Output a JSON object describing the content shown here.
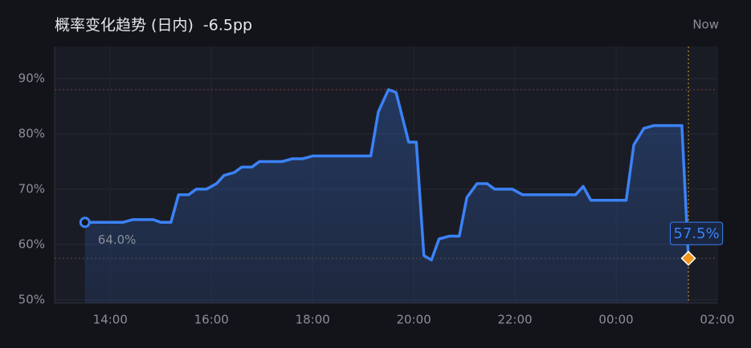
{
  "chart_data": {
    "type": "line",
    "title": "概率变化趋势 (日内)",
    "change": "-6.5pp",
    "now_label": "Now",
    "x": [
      13.5,
      14.25,
      14.45,
      14.85,
      15.0,
      15.2,
      15.35,
      15.55,
      15.7,
      15.9,
      16.1,
      16.25,
      16.45,
      16.6,
      16.8,
      16.95,
      17.4,
      17.6,
      17.8,
      18.0,
      19.15,
      19.3,
      19.5,
      19.65,
      19.9,
      20.05,
      20.2,
      20.35,
      20.5,
      20.7,
      20.9,
      21.05,
      21.25,
      21.45,
      21.6,
      21.95,
      22.15,
      23.2,
      23.35,
      23.5,
      24.2,
      24.35,
      24.55,
      24.75,
      25.3,
      25.43
    ],
    "series": [
      {
        "color": "#3b82f6",
        "values": [
          64.0,
          64.0,
          64.5,
          64.5,
          64.0,
          64.0,
          69.0,
          69.0,
          70.0,
          70.0,
          71.0,
          72.5,
          73.0,
          74.0,
          74.0,
          75.0,
          75.0,
          75.5,
          75.5,
          76.0,
          76.0,
          84.0,
          88.0,
          87.5,
          78.5,
          78.5,
          58.0,
          57.2,
          61.0,
          61.5,
          61.5,
          68.5,
          71.0,
          71.0,
          70.0,
          70.0,
          69.0,
          69.0,
          70.5,
          68.0,
          68.0,
          78.0,
          81.0,
          81.5,
          81.5,
          57.5
        ],
        "value_labels": [
          "64.0%",
          null,
          null,
          null,
          null,
          null,
          null,
          null,
          null,
          null,
          null,
          null,
          null,
          null,
          null,
          null,
          null,
          null,
          null,
          null,
          null,
          null,
          null,
          null,
          null,
          null,
          null,
          null,
          null,
          null,
          null,
          null,
          null,
          null,
          null,
          null,
          null,
          null,
          null,
          null,
          null,
          null,
          null,
          null,
          null,
          "57.5%"
        ]
      }
    ],
    "xlim": [
      12.9,
      26.0
    ],
    "xticks": [
      {
        "value": 14,
        "label": "14:00"
      },
      {
        "value": 16,
        "label": "16:00"
      },
      {
        "value": 18,
        "label": "18:00"
      },
      {
        "value": 20,
        "label": "20:00"
      },
      {
        "value": 22,
        "label": "22:00"
      },
      {
        "value": 24,
        "label": "00:00"
      },
      {
        "value": 26,
        "label": "02:00"
      }
    ],
    "ylim": [
      49.4,
      95.8
    ],
    "yticks": [
      {
        "value": 50,
        "label": "50%"
      },
      {
        "value": 60,
        "label": "60%"
      },
      {
        "value": 70,
        "label": "70%"
      },
      {
        "value": 80,
        "label": "80%"
      },
      {
        "value": 90,
        "label": "90%"
      }
    ],
    "grid": true
  }
}
